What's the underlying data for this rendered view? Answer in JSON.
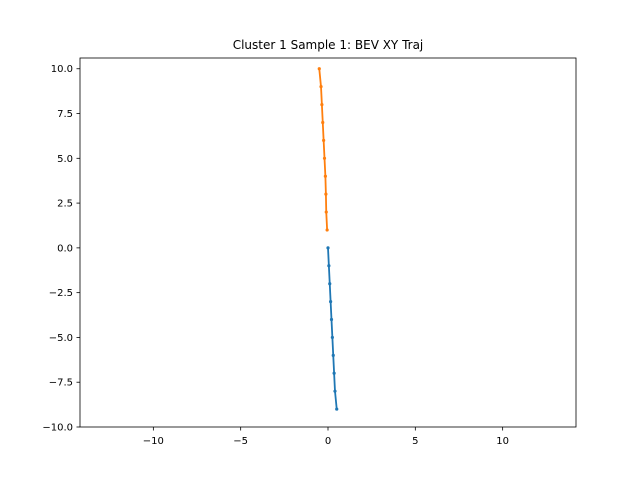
{
  "chart_data": {
    "type": "line",
    "title": "Cluster 1 Sample 1: BEV XY Traj",
    "xlabel": "",
    "ylabel": "",
    "xlim": [
      -14.2,
      14.2
    ],
    "ylim": [
      -10.0,
      10.6
    ],
    "xticks": [
      -10,
      -5,
      0,
      5,
      10
    ],
    "yticks": [
      -10.0,
      -7.5,
      -5.0,
      -2.5,
      0.0,
      2.5,
      5.0,
      7.5,
      10.0
    ],
    "xtick_labels": [
      "−10",
      "−5",
      "0",
      "5",
      "10"
    ],
    "ytick_labels": [
      "−10.0",
      "−7.5",
      "−5.0",
      "−2.5",
      "0.0",
      "2.5",
      "5.0",
      "7.5",
      "10.0"
    ],
    "grid": false,
    "series": [
      {
        "color": "#1f77b4",
        "marker": "circle",
        "x": [
          0.0,
          0.05,
          0.1,
          0.15,
          0.2,
          0.25,
          0.3,
          0.35,
          0.4,
          0.5
        ],
        "y": [
          0.0,
          -1.0,
          -2.0,
          -3.0,
          -4.0,
          -5.0,
          -6.0,
          -7.0,
          -8.0,
          -9.0
        ]
      },
      {
        "color": "#ff7f0e",
        "marker": "circle",
        "x": [
          -0.05,
          -0.1,
          -0.12,
          -0.15,
          -0.2,
          -0.25,
          -0.3,
          -0.35,
          -0.4,
          -0.5
        ],
        "y": [
          1.0,
          2.0,
          3.0,
          4.0,
          5.0,
          6.0,
          7.0,
          8.0,
          9.0,
          10.0
        ]
      }
    ]
  }
}
